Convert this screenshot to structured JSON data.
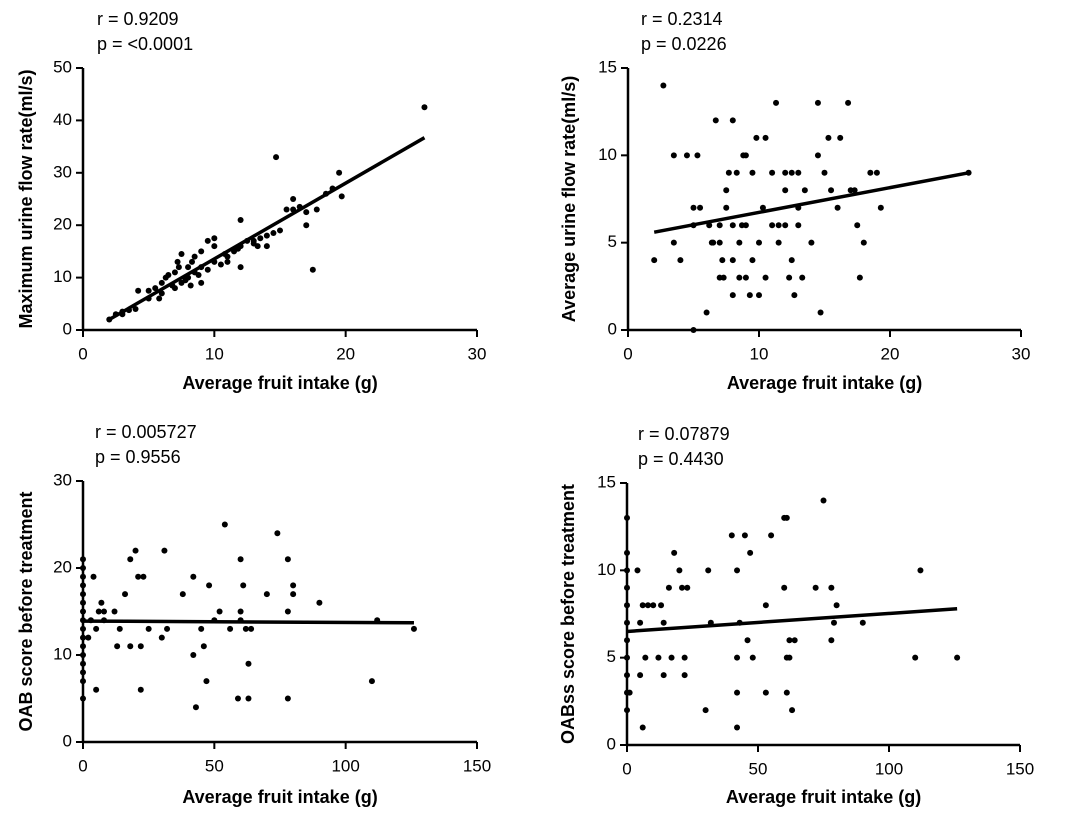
{
  "chart_data": {
    "type": "multi",
    "charts": [
      {
        "type": "scatter",
        "color": "#000000",
        "xlabel": "Average fruit intake (g)",
        "ylabel": "Maximum urine flow rate(ml/s)",
        "annotations": [
          "r = 0.9209",
          "p = <0.0001"
        ],
        "xlim": [
          0,
          30
        ],
        "ylim": [
          0,
          50
        ],
        "xticks": [
          0,
          10,
          20,
          30
        ],
        "yticks": [
          0,
          10,
          20,
          30,
          40,
          50
        ],
        "x": [
          2,
          2.5,
          3,
          3.5,
          4,
          4.2,
          5,
          5,
          5.5,
          6,
          6,
          6.3,
          6.5,
          7,
          7,
          7.2,
          7.5,
          7.5,
          8,
          8,
          8.3,
          8.5,
          8.5,
          9,
          9,
          9,
          9.5,
          9.5,
          10,
          10,
          10,
          10.5,
          11,
          11,
          11.5,
          12,
          12,
          12,
          12.5,
          13,
          13,
          13.5,
          14,
          14,
          14.5,
          14.7,
          15,
          15.5,
          16,
          16,
          16.5,
          17,
          17,
          17.5,
          17.8,
          18.5,
          19,
          19.5,
          19.7,
          26,
          3,
          5.8,
          6.8,
          7.8,
          8.8,
          10.8,
          11.8,
          13.3,
          7.3,
          8.2
        ],
        "y": [
          2,
          3,
          3.5,
          3.8,
          4,
          7.5,
          6,
          7.5,
          8,
          7,
          9,
          10,
          10.5,
          8,
          11,
          13,
          14.5,
          9,
          10,
          12,
          13,
          11,
          14,
          12,
          15,
          9,
          11.5,
          17,
          13,
          16,
          17.5,
          12.5,
          14,
          13,
          15,
          16,
          21,
          12,
          17,
          16.5,
          17,
          17.5,
          18,
          16,
          18.5,
          33,
          19,
          23,
          25,
          23,
          23.5,
          22.5,
          20,
          11.5,
          23,
          26,
          27,
          30,
          25.5,
          42.5,
          3,
          6,
          8.5,
          9.5,
          10.5,
          14.5,
          15.5,
          16,
          12,
          8.5
        ],
        "trendline": {
          "x": [
            2,
            26
          ],
          "y": [
            2,
            36.7
          ]
        }
      },
      {
        "type": "scatter",
        "color": "#000000",
        "xlabel": "Average fruit intake (g)",
        "ylabel": "Average urine flow rate(ml/s)",
        "annotations": [
          "r = 0.2314",
          "p = 0.0226"
        ],
        "xlim": [
          0,
          30
        ],
        "ylim": [
          0,
          15
        ],
        "xticks": [
          0,
          10,
          20,
          30
        ],
        "yticks": [
          0,
          5,
          10,
          15
        ],
        "x": [
          2,
          2.7,
          3.5,
          3.5,
          4,
          4.5,
          5,
          5,
          5,
          5.3,
          5.5,
          6,
          6.2,
          6.4,
          6.7,
          6.5,
          7,
          7,
          7,
          7.2,
          7.3,
          7.5,
          7.5,
          7.7,
          8,
          8,
          8,
          8,
          8.3,
          8.5,
          8.5,
          8.7,
          8.8,
          9,
          9,
          9,
          9.3,
          9.5,
          9.5,
          9.8,
          10,
          10,
          10.3,
          10.5,
          10.5,
          11,
          11,
          11.3,
          11.5,
          11.5,
          12,
          12,
          12,
          12.3,
          12.5,
          12.5,
          12.7,
          13,
          13,
          13,
          13.3,
          13.5,
          14,
          14.5,
          14.5,
          14.7,
          15,
          15.3,
          15.5,
          16,
          16.2,
          16.8,
          17,
          17.3,
          17.5,
          17.7,
          18,
          18.5,
          19,
          19.3,
          26
        ],
        "y": [
          4,
          14,
          5,
          10,
          4,
          10,
          0,
          6,
          7,
          10,
          7,
          1,
          6,
          5,
          12,
          5,
          3,
          5,
          6,
          4,
          3,
          7,
          8,
          9,
          12,
          4,
          2,
          6,
          9,
          3,
          5,
          6,
          10,
          10,
          6,
          3,
          2,
          4,
          9,
          11,
          5,
          2,
          7,
          11,
          3,
          9,
          6,
          13,
          6,
          5,
          9,
          6,
          8,
          3,
          4,
          9,
          2,
          6,
          7,
          9,
          3,
          8,
          5,
          10,
          13,
          1,
          9,
          11,
          8,
          7,
          11,
          13,
          8,
          8,
          6,
          3,
          5,
          9,
          9,
          7,
          9
        ],
        "trendline": {
          "x": [
            2,
            26
          ],
          "y": [
            5.6,
            9
          ]
        }
      },
      {
        "type": "scatter",
        "color": "#000000",
        "xlabel": "Average fruit intake (g)",
        "ylabel": "OAB score before treatment",
        "annotations": [
          "r = 0.005727",
          "p = 0.9556"
        ],
        "xlim": [
          0,
          150
        ],
        "ylim": [
          0,
          30
        ],
        "xticks": [
          0,
          50,
          100,
          150
        ],
        "yticks": [
          0,
          10,
          20,
          30
        ],
        "x": [
          0,
          0,
          0,
          0,
          0,
          0,
          0,
          0,
          0,
          0,
          0,
          0,
          0,
          0,
          0,
          0,
          2,
          3,
          4,
          5,
          5,
          6,
          7,
          8,
          8,
          12,
          13,
          14,
          16,
          18,
          18,
          20,
          21,
          22,
          22,
          23,
          25,
          30,
          31,
          32,
          38,
          42,
          42,
          43,
          45,
          46,
          47,
          48,
          50,
          52,
          54,
          56,
          59,
          60,
          60,
          60,
          61,
          62,
          63,
          63,
          64,
          70,
          74,
          78,
          78,
          78,
          80,
          80,
          90,
          110,
          112,
          126
        ],
        "y": [
          5,
          7,
          8,
          9,
          10,
          11,
          12,
          13,
          14,
          15,
          16,
          17,
          18,
          19,
          20,
          21,
          12,
          14,
          19,
          6,
          13,
          15,
          16,
          14,
          15,
          15,
          11,
          13,
          17,
          11,
          21,
          22,
          19,
          6,
          11,
          19,
          13,
          12,
          22,
          13,
          17,
          19,
          10,
          4,
          13,
          11,
          7,
          18,
          14,
          15,
          25,
          13,
          5,
          14,
          21,
          15,
          18,
          13,
          5,
          9,
          13,
          17,
          24,
          5,
          15,
          21,
          17,
          18,
          16,
          7,
          14,
          13
        ],
        "trendline": {
          "x": [
            0,
            126
          ],
          "y": [
            13.9,
            13.7
          ]
        }
      },
      {
        "type": "scatter",
        "color": "#000000",
        "xlabel": "Average fruit intake (g)",
        "ylabel": "OABss score before treatment",
        "annotations": [
          "r = 0.07879",
          "p = 0.4430"
        ],
        "xlim": [
          0,
          150
        ],
        "ylim": [
          0,
          15
        ],
        "xticks": [
          0,
          50,
          100,
          150
        ],
        "yticks": [
          0,
          5,
          10,
          15
        ],
        "x": [
          0,
          0,
          0,
          0,
          0,
          0,
          0,
          0,
          0,
          0,
          0,
          1,
          4,
          5,
          5,
          6,
          6,
          7,
          8,
          10,
          12,
          13,
          14,
          14,
          16,
          17,
          18,
          20,
          21,
          22,
          22,
          23,
          30,
          31,
          32,
          40,
          42,
          42,
          42,
          42,
          43,
          45,
          46,
          47,
          48,
          53,
          53,
          55,
          60,
          60,
          61,
          61,
          61,
          62,
          62,
          63,
          64,
          72,
          75,
          78,
          79,
          78,
          80,
          90,
          110,
          112,
          126
        ],
        "y": [
          2,
          3,
          4,
          5,
          6,
          7,
          8,
          9,
          10,
          11,
          13,
          3,
          10,
          4,
          7,
          1,
          8,
          5,
          8,
          8,
          5,
          8,
          7,
          4,
          9,
          5,
          11,
          10,
          9,
          5,
          4,
          9,
          2,
          10,
          7,
          12,
          1,
          3,
          5,
          10,
          7,
          12,
          6,
          11,
          5,
          8,
          3,
          12,
          13,
          9,
          5,
          3,
          13,
          6,
          5,
          2,
          6,
          9,
          14,
          9,
          7,
          6,
          8,
          7,
          5,
          10,
          5
        ],
        "trendline": {
          "x": [
            0,
            126
          ],
          "y": [
            6.5,
            7.8
          ]
        }
      }
    ]
  }
}
